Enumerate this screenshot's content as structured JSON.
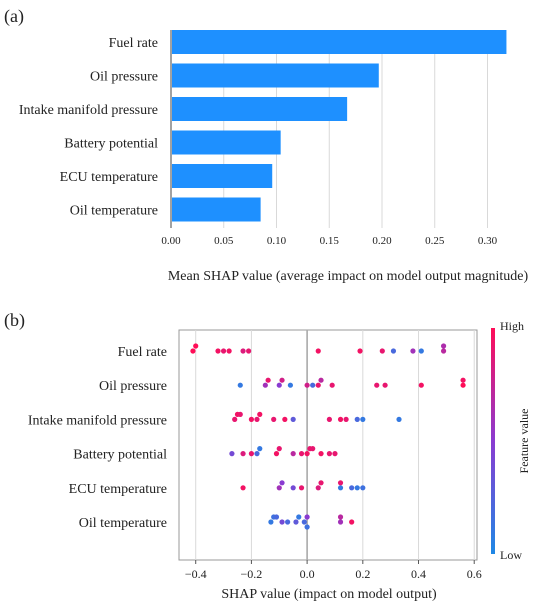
{
  "chart_data": [
    {
      "panel_label": "(a)",
      "type": "bar",
      "orientation": "horizontal",
      "categories": [
        "Fuel rate",
        "Oil pressure",
        "Intake manifold pressure",
        "Battery potential",
        "ECU temperature",
        "Oil temperature"
      ],
      "values": [
        0.317,
        0.196,
        0.166,
        0.103,
        0.095,
        0.084
      ],
      "xlabel": "Mean SHAP value (average impact on model output magnitude)",
      "xlim": [
        0,
        0.33
      ],
      "xticks": [
        "0.00",
        "0.05",
        "0.10",
        "0.15",
        "0.20",
        "0.25",
        "0.30"
      ],
      "grid": "vertical",
      "bar_color": "#1e90ff"
    },
    {
      "panel_label": "(b)",
      "type": "scatter",
      "subtype": "shap-beeswarm",
      "categories": [
        "Fuel rate",
        "Oil pressure",
        "Intake manifold pressure",
        "Battery potential",
        "ECU temperature",
        "Oil temperature"
      ],
      "series": [
        {
          "category": "Fuel rate",
          "points": [
            {
              "x": -0.41,
              "fv": 1.0
            },
            {
              "x": -0.4,
              "fv": 1.0
            },
            {
              "x": -0.32,
              "fv": 0.95
            },
            {
              "x": -0.3,
              "fv": 0.9
            },
            {
              "x": -0.28,
              "fv": 0.95
            },
            {
              "x": -0.23,
              "fv": 0.85
            },
            {
              "x": -0.21,
              "fv": 0.9
            },
            {
              "x": 0.04,
              "fv": 0.95
            },
            {
              "x": 0.19,
              "fv": 0.95
            },
            {
              "x": 0.27,
              "fv": 0.9
            },
            {
              "x": 0.31,
              "fv": 0.2
            },
            {
              "x": 0.38,
              "fv": 0.6
            },
            {
              "x": 0.41,
              "fv": 0.1
            },
            {
              "x": 0.49,
              "fv": 0.7
            },
            {
              "x": 0.49,
              "fv": 0.65
            }
          ]
        },
        {
          "category": "Oil pressure",
          "points": [
            {
              "x": -0.24,
              "fv": 0.1
            },
            {
              "x": -0.15,
              "fv": 0.6
            },
            {
              "x": -0.14,
              "fv": 0.9
            },
            {
              "x": -0.1,
              "fv": 0.5
            },
            {
              "x": -0.09,
              "fv": 0.8
            },
            {
              "x": -0.06,
              "fv": 0.1
            },
            {
              "x": 0.0,
              "fv": 0.8
            },
            {
              "x": 0.02,
              "fv": 0.2
            },
            {
              "x": 0.04,
              "fv": 0.9
            },
            {
              "x": 0.05,
              "fv": 0.7
            },
            {
              "x": 0.09,
              "fv": 0.9
            },
            {
              "x": 0.25,
              "fv": 0.9
            },
            {
              "x": 0.28,
              "fv": 0.9
            },
            {
              "x": 0.41,
              "fv": 0.95
            },
            {
              "x": 0.56,
              "fv": 1.0
            },
            {
              "x": 0.56,
              "fv": 0.95
            }
          ]
        },
        {
          "category": "Intake manifold pressure",
          "points": [
            {
              "x": -0.26,
              "fv": 0.9
            },
            {
              "x": -0.25,
              "fv": 0.95
            },
            {
              "x": -0.24,
              "fv": 0.9
            },
            {
              "x": -0.2,
              "fv": 0.95
            },
            {
              "x": -0.18,
              "fv": 0.9
            },
            {
              "x": -0.17,
              "fv": 0.95
            },
            {
              "x": -0.12,
              "fv": 0.9
            },
            {
              "x": -0.08,
              "fv": 0.95
            },
            {
              "x": -0.05,
              "fv": 0.3
            },
            {
              "x": 0.08,
              "fv": 0.9
            },
            {
              "x": 0.12,
              "fv": 0.95
            },
            {
              "x": 0.14,
              "fv": 0.9
            },
            {
              "x": 0.18,
              "fv": 0.2
            },
            {
              "x": 0.2,
              "fv": 0.1
            },
            {
              "x": 0.33,
              "fv": 0.1
            }
          ]
        },
        {
          "category": "Battery potential",
          "points": [
            {
              "x": -0.27,
              "fv": 0.4
            },
            {
              "x": -0.23,
              "fv": 0.85
            },
            {
              "x": -0.2,
              "fv": 0.9
            },
            {
              "x": -0.18,
              "fv": 0.2
            },
            {
              "x": -0.17,
              "fv": 0.1
            },
            {
              "x": -0.11,
              "fv": 0.95
            },
            {
              "x": -0.1,
              "fv": 0.9
            },
            {
              "x": -0.05,
              "fv": 0.7
            },
            {
              "x": -0.02,
              "fv": 0.9
            },
            {
              "x": 0.0,
              "fv": 0.95
            },
            {
              "x": 0.01,
              "fv": 0.9
            },
            {
              "x": 0.02,
              "fv": 0.9
            },
            {
              "x": 0.05,
              "fv": 0.95
            },
            {
              "x": 0.08,
              "fv": 0.9
            },
            {
              "x": 0.1,
              "fv": 0.9
            }
          ]
        },
        {
          "category": "ECU temperature",
          "points": [
            {
              "x": -0.23,
              "fv": 0.95
            },
            {
              "x": -0.1,
              "fv": 0.6
            },
            {
              "x": -0.09,
              "fv": 0.5
            },
            {
              "x": -0.05,
              "fv": 0.4
            },
            {
              "x": -0.02,
              "fv": 0.9
            },
            {
              "x": 0.04,
              "fv": 0.85
            },
            {
              "x": 0.05,
              "fv": 0.9
            },
            {
              "x": 0.12,
              "fv": 0.1
            },
            {
              "x": 0.12,
              "fv": 0.9
            },
            {
              "x": 0.16,
              "fv": 0.2
            },
            {
              "x": 0.18,
              "fv": 0.1
            },
            {
              "x": 0.2,
              "fv": 0.15
            }
          ]
        },
        {
          "category": "Oil temperature",
          "points": [
            {
              "x": -0.13,
              "fv": 0.1
            },
            {
              "x": -0.12,
              "fv": 0.15
            },
            {
              "x": -0.11,
              "fv": 0.2
            },
            {
              "x": -0.09,
              "fv": 0.4
            },
            {
              "x": -0.07,
              "fv": 0.2
            },
            {
              "x": -0.04,
              "fv": 0.3
            },
            {
              "x": -0.03,
              "fv": 0.1
            },
            {
              "x": -0.01,
              "fv": 0.2
            },
            {
              "x": 0.0,
              "fv": 0.5
            },
            {
              "x": 0.0,
              "fv": 0.15
            },
            {
              "x": 0.12,
              "fv": 0.6
            },
            {
              "x": 0.12,
              "fv": 0.7
            },
            {
              "x": 0.16,
              "fv": 0.95
            }
          ]
        }
      ],
      "xlabel": "SHAP value (impact on model output)",
      "xlim": [
        -0.46,
        0.61
      ],
      "xticks": [
        "−0.4",
        "−0.2",
        "0.0",
        "0.2",
        "0.4",
        "0.6"
      ],
      "tick_values": [
        -0.4,
        -0.2,
        0,
        0.2,
        0.4,
        0.6
      ],
      "grid": "vertical",
      "colorbar": {
        "label": "Feature value",
        "high": "High",
        "low": "Low",
        "high_color": "#ff0d57",
        "low_color": "#1e88e5"
      }
    }
  ]
}
